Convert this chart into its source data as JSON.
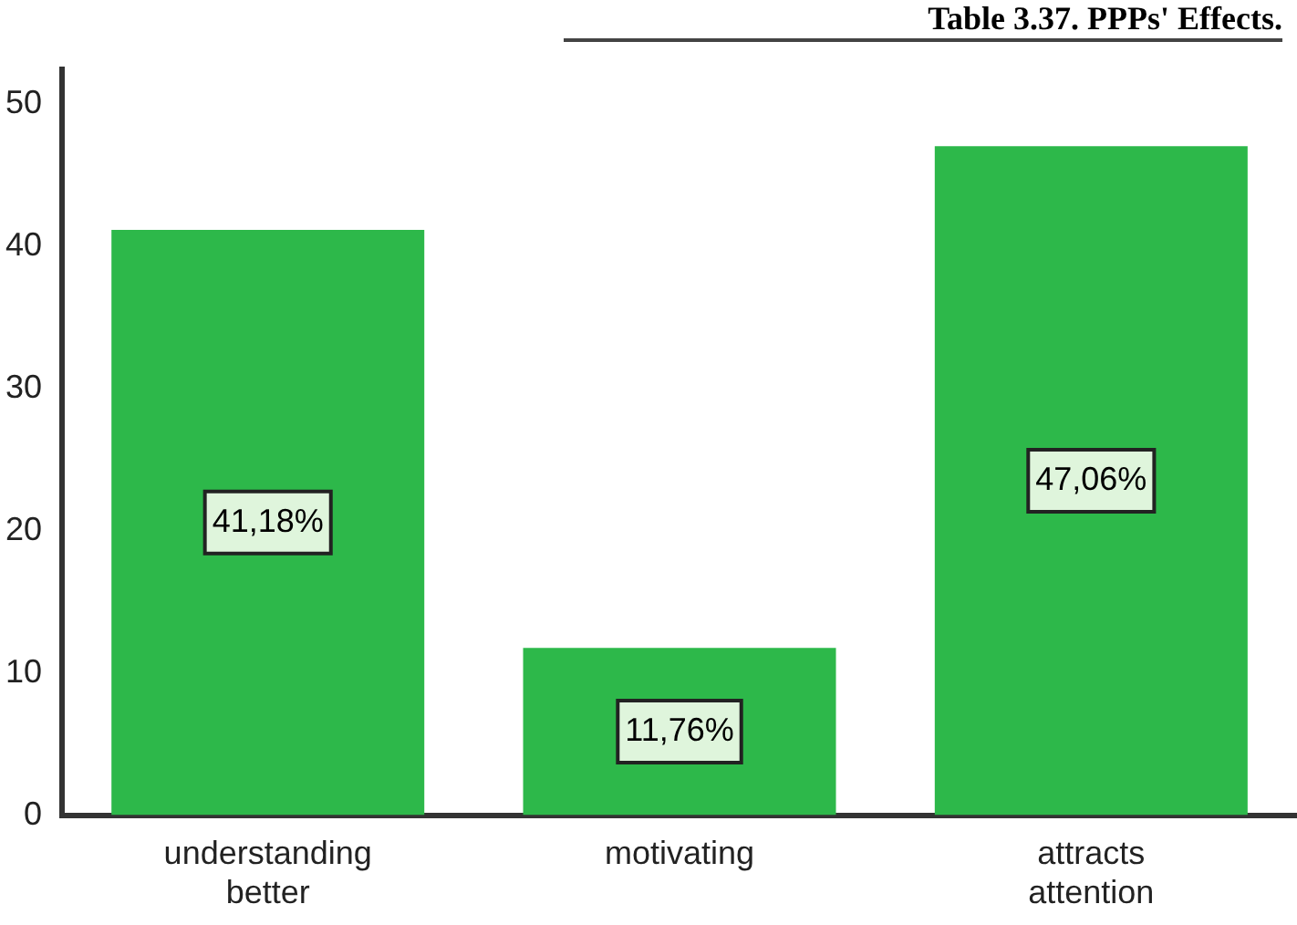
{
  "chart_data": {
    "type": "bar",
    "title": "Table 3.37. PPPs' Effects.",
    "categories": [
      "understanding better",
      "motivating",
      "attracts attention"
    ],
    "values": [
      41.18,
      11.76,
      47.06
    ],
    "color": "#2db84a",
    "value_labels": [
      "41,18%",
      "11,76%",
      "47,06%"
    ],
    "ylim": [
      0,
      52.5
    ],
    "yticks": [
      0,
      10,
      20,
      30,
      40,
      50
    ],
    "grid": false,
    "legend": false
  }
}
